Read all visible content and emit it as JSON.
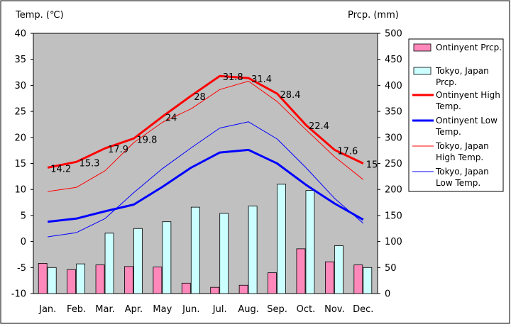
{
  "chart_data": {
    "type": "bar",
    "categories": [
      "Jan.",
      "Feb.",
      "Mar.",
      "Apr.",
      "May",
      "Jun.",
      "Jul.",
      "Aug.",
      "Sep.",
      "Oct.",
      "Nov.",
      "Dec."
    ],
    "left_axis": {
      "label": "Temp. (℃)",
      "ylim": [
        -10,
        40
      ],
      "ticks": [
        40,
        35,
        30,
        25,
        20,
        15,
        10,
        5,
        0,
        -5,
        -10
      ]
    },
    "right_axis": {
      "label": "Prcp. (mm)",
      "ylim": [
        0,
        500
      ],
      "ticks": [
        500,
        450,
        400,
        350,
        300,
        250,
        200,
        150,
        100,
        50,
        0
      ]
    },
    "grid": false,
    "plot_background": "#c0c0c0",
    "legend_position": "right",
    "bar_series": [
      {
        "name": "Ontinyent Prcp.",
        "color": "#ff88bb",
        "values": [
          58,
          46,
          55,
          52,
          51,
          20,
          12,
          16,
          40,
          86,
          61,
          55
        ]
      },
      {
        "name": "Tokyo, Japan Prcp.",
        "color": "#ccffff",
        "values": [
          50,
          57,
          116,
          125,
          138,
          166,
          154,
          168,
          210,
          198,
          92,
          50
        ]
      }
    ],
    "line_series": [
      {
        "name": "Ontinyent High Temp.",
        "color": "#ff0000",
        "width": 3,
        "values": [
          14.2,
          15.3,
          17.9,
          19.8,
          24,
          28,
          31.8,
          31.4,
          28.4,
          22.4,
          17.6,
          15
        ],
        "labels": [
          "14.2",
          "15.3",
          "17.9",
          "19.8",
          "24",
          "28",
          "31.8",
          "31.4",
          "28.4",
          "22.4",
          "17.6",
          "15"
        ]
      },
      {
        "name": "Ontinyent Low Temp.",
        "color": "#0000ff",
        "width": 3,
        "values": [
          3.8,
          4.4,
          5.8,
          7.1,
          10.5,
          14.2,
          17.1,
          17.6,
          15,
          10.9,
          7.3,
          4.2
        ]
      },
      {
        "name": "Tokyo, Japan High Temp.",
        "color": "#ff0000",
        "width": 1,
        "values": [
          9.6,
          10.4,
          13.6,
          19,
          22.9,
          25.5,
          29.2,
          30.8,
          26.9,
          21.5,
          16.3,
          11.9
        ]
      },
      {
        "name": "Tokyo, Japan Low Temp.",
        "color": "#0000ff",
        "width": 1,
        "values": [
          0.9,
          1.7,
          4.4,
          9.4,
          14,
          18,
          21.8,
          23,
          19.7,
          14.2,
          8.3,
          3.5
        ]
      }
    ]
  }
}
